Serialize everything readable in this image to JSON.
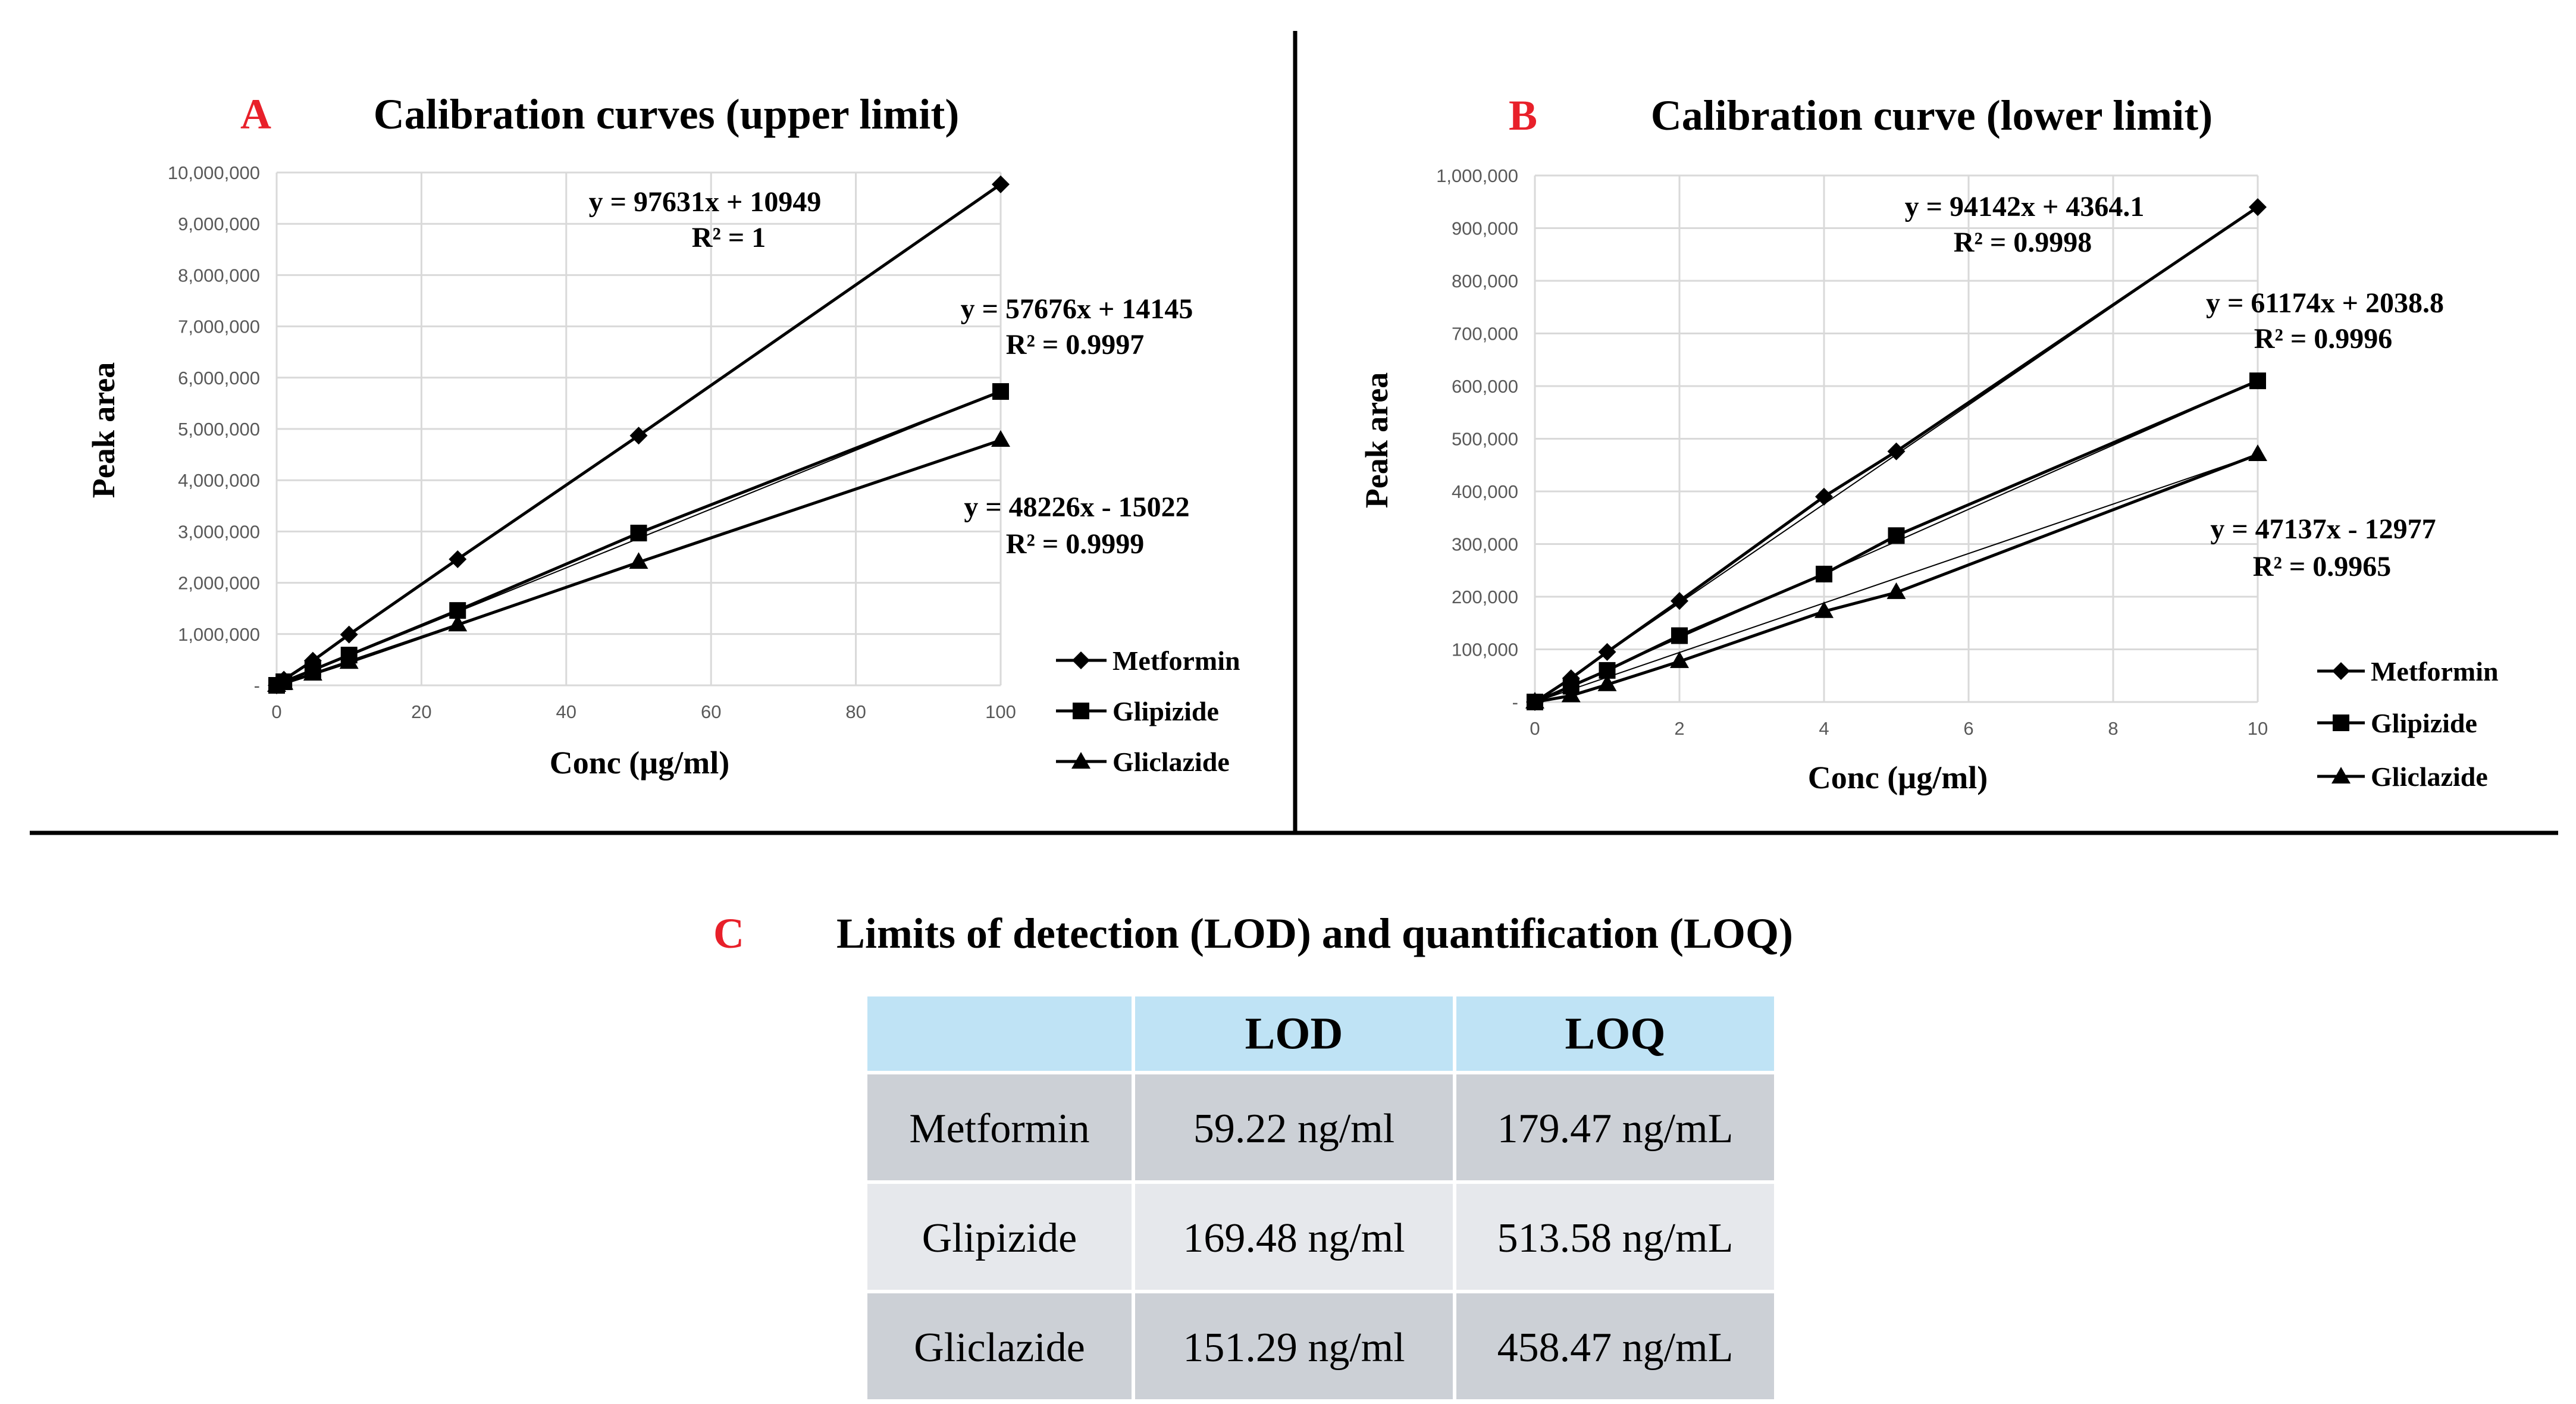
{
  "colors": {
    "panel_letter": "#e8202a",
    "grid": "#d9d9d9",
    "series": "#000000",
    "table_header": "#bfe3f5",
    "table_row_odd": "#ccd0d6",
    "table_row_even": "#e6e8ec"
  },
  "chart_data": [
    {
      "panel": "A",
      "type": "line",
      "title": "Calibration curves (upper limit)",
      "xlabel": "Conc (µg/ml)",
      "ylabel": "Peak  area",
      "xlim": [
        0,
        100
      ],
      "ylim": [
        0,
        10000000
      ],
      "xticks": [
        "0",
        "20",
        "40",
        "60",
        "80",
        "100"
      ],
      "yticks": [
        "-",
        "1,000,000",
        "2,000,000",
        "3,000,000",
        "4,000,000",
        "5,000,000",
        "6,000,000",
        "7,000,000",
        "8,000,000",
        "9,000,000",
        "10,000,000"
      ],
      "grid": true,
      "legend_position": "bottom-right",
      "series": [
        {
          "name": "Metformin",
          "marker": "diamond",
          "x": [
            0,
            1,
            5,
            10,
            25,
            50,
            100
          ],
          "y": [
            0,
            110000,
            480000,
            990000,
            2460000,
            4870000,
            9770000
          ]
        },
        {
          "name": "Glipizide",
          "marker": "square",
          "x": [
            0,
            1,
            5,
            10,
            25,
            50,
            100
          ],
          "y": [
            0,
            70000,
            300000,
            590000,
            1460000,
            2970000,
            5730000
          ]
        },
        {
          "name": "Gliclazide",
          "marker": "triangle",
          "x": [
            0,
            1,
            5,
            10,
            25,
            50,
            100
          ],
          "y": [
            0,
            40000,
            220000,
            450000,
            1180000,
            2400000,
            4780000
          ]
        }
      ],
      "annotations": [
        {
          "line1": "y = 97631x + 10949",
          "line2": "R² = 1"
        },
        {
          "line1": "y = 57676x + 14145",
          "line2": "R² = 0.9997"
        },
        {
          "line1": "y = 48226x - 15022",
          "line2": "R² = 0.9999"
        }
      ]
    },
    {
      "panel": "B",
      "type": "line",
      "title": "Calibration curve (lower limit)",
      "xlabel": "Conc (µg/ml)",
      "ylabel": "Peak area",
      "xlim": [
        0,
        10
      ],
      "ylim": [
        0,
        1000000
      ],
      "xticks": [
        "0",
        "2",
        "4",
        "6",
        "8",
        "10"
      ],
      "yticks": [
        "-",
        "100,000",
        "200,000",
        "300,000",
        "400,000",
        "500,000",
        "600,000",
        "700,000",
        "800,000",
        "900,000",
        "1,000,000"
      ],
      "grid": true,
      "legend_position": "bottom-right",
      "series": [
        {
          "name": "Metformin",
          "marker": "diamond",
          "x": [
            0,
            0.5,
            1,
            2,
            4,
            5,
            10
          ],
          "y": [
            0,
            45000,
            95000,
            192000,
            390000,
            476000,
            940000
          ]
        },
        {
          "name": "Glipizide",
          "marker": "square",
          "x": [
            0,
            0.5,
            1,
            2,
            4,
            5,
            10
          ],
          "y": [
            0,
            30000,
            60000,
            126000,
            243000,
            316000,
            610000
          ]
        },
        {
          "name": "Gliclazide",
          "marker": "triangle",
          "x": [
            0,
            0.5,
            1,
            2,
            4,
            5,
            10
          ],
          "y": [
            0,
            12000,
            33000,
            77000,
            172000,
            208000,
            470000
          ]
        }
      ],
      "annotations": [
        {
          "line1": "y = 94142x + 4364.1",
          "line2": "R² = 0.9998"
        },
        {
          "line1": "y = 61174x + 2038.8",
          "line2": "R² = 0.9996"
        },
        {
          "line1": "y = 47137x - 12977",
          "line2": "R² = 0.9965"
        }
      ]
    },
    {
      "panel": "C",
      "type": "table",
      "title": "Limits of detection (LOD) and quantification (LOQ)",
      "columns": [
        "",
        "LOD",
        "LOQ"
      ],
      "rows": [
        [
          "Metformin",
          "59.22 ng/ml",
          "179.47 ng/mL"
        ],
        [
          "Glipizide",
          "169.48 ng/ml",
          "513.58 ng/mL"
        ],
        [
          "Gliclazide",
          "151.29 ng/ml",
          "458.47 ng/mL"
        ]
      ]
    }
  ]
}
